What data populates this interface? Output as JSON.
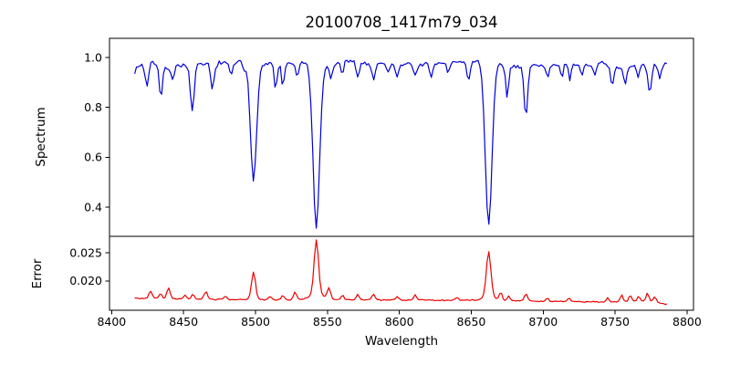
{
  "chart_data": {
    "type": "line",
    "title": "20100708_1417m79_034",
    "xlabel": "Wavelength",
    "xlim": [
      8398.5,
      8804.5
    ],
    "xticks": [
      8400,
      8450,
      8500,
      8550,
      8600,
      8650,
      8700,
      8750,
      8800
    ],
    "x_data_range": [
      8416,
      8786
    ],
    "sample_step": 1.25,
    "background_color": "#ffffff",
    "frame_color": "#000000",
    "panels": [
      {
        "name": "spectrum",
        "ylabel": "Spectrum",
        "color": "#0000dd",
        "ylim": [
          0.283,
          1.077
        ],
        "yticks": [
          0.4,
          0.6,
          0.8,
          1.0
        ],
        "ytick_labels": [
          "0.4",
          "0.6",
          "0.8",
          "1.0"
        ],
        "noise_seed": 7,
        "noise_amplitude": 0.011,
        "continuum": [
          [
            8416,
            0.945
          ],
          [
            8419,
            0.968
          ],
          [
            8423,
            0.975
          ],
          [
            8428,
            0.985
          ],
          [
            8432,
            0.975
          ],
          [
            8438,
            0.955
          ],
          [
            8444,
            0.965
          ],
          [
            8450,
            0.972
          ],
          [
            8455,
            0.965
          ],
          [
            8460,
            0.968
          ],
          [
            8466,
            0.975
          ],
          [
            8474,
            0.978
          ],
          [
            8481,
            0.975
          ],
          [
            8488,
            0.982
          ],
          [
            8495,
            0.978
          ],
          [
            8503,
            0.972
          ],
          [
            8509,
            0.975
          ],
          [
            8517,
            0.972
          ],
          [
            8524,
            0.975
          ],
          [
            8532,
            0.978
          ],
          [
            8538,
            0.982
          ],
          [
            8545,
            0.975
          ],
          [
            8551,
            0.962
          ],
          [
            8557,
            0.975
          ],
          [
            8563,
            0.985
          ],
          [
            8571,
            0.978
          ],
          [
            8579,
            0.975
          ],
          [
            8588,
            0.978
          ],
          [
            8597,
            0.972
          ],
          [
            8606,
            0.975
          ],
          [
            8615,
            0.972
          ],
          [
            8624,
            0.975
          ],
          [
            8633,
            0.978
          ],
          [
            8642,
            0.982
          ],
          [
            8651,
            0.988
          ],
          [
            8659,
            0.985
          ],
          [
            8666,
            0.972
          ],
          [
            8673,
            0.968
          ],
          [
            8681,
            0.965
          ],
          [
            8692,
            0.968
          ],
          [
            8701,
            0.972
          ],
          [
            8711,
            0.975
          ],
          [
            8721,
            0.968
          ],
          [
            8731,
            0.972
          ],
          [
            8741,
            0.975
          ],
          [
            8749,
            0.962
          ],
          [
            8755,
            0.955
          ],
          [
            8762,
            0.965
          ],
          [
            8769,
            0.972
          ],
          [
            8777,
            0.968
          ],
          [
            8786,
            0.972
          ]
        ],
        "absorption_lines": [
          {
            "center": 8424.5,
            "depth": 0.09,
            "sigma": 1.2
          },
          {
            "center": 8434.2,
            "depth": 0.13,
            "sigma": 1.1
          },
          {
            "center": 8442.5,
            "depth": 0.05,
            "sigma": 1.0
          },
          {
            "center": 8456.0,
            "depth": 0.185,
            "sigma": 1.3
          },
          {
            "center": 8470.0,
            "depth": 0.105,
            "sigma": 1.2
          },
          {
            "center": 8483.0,
            "depth": 0.05,
            "sigma": 1.0
          },
          {
            "center": 8492.0,
            "depth": 0.035,
            "sigma": 0.9
          },
          {
            "center": 8498.6,
            "depth": 0.465,
            "sigma": 2.1
          },
          {
            "center": 8514.0,
            "depth": 0.105,
            "sigma": 0.9
          },
          {
            "center": 8519.0,
            "depth": 0.095,
            "sigma": 0.9
          },
          {
            "center": 8529.0,
            "depth": 0.06,
            "sigma": 1.0
          },
          {
            "center": 8542.3,
            "depth": 0.66,
            "sigma": 2.3
          },
          {
            "center": 8552.5,
            "depth": 0.05,
            "sigma": 1.0
          },
          {
            "center": 8560.5,
            "depth": 0.045,
            "sigma": 0.9
          },
          {
            "center": 8571.0,
            "depth": 0.055,
            "sigma": 1.0
          },
          {
            "center": 8582.0,
            "depth": 0.065,
            "sigma": 1.1
          },
          {
            "center": 8592.0,
            "depth": 0.04,
            "sigma": 0.9
          },
          {
            "center": 8598.5,
            "depth": 0.05,
            "sigma": 1.0
          },
          {
            "center": 8611.0,
            "depth": 0.05,
            "sigma": 1.0
          },
          {
            "center": 8622.0,
            "depth": 0.06,
            "sigma": 1.0
          },
          {
            "center": 8634.0,
            "depth": 0.04,
            "sigma": 0.9
          },
          {
            "center": 8648.0,
            "depth": 0.075,
            "sigma": 1.2
          },
          {
            "center": 8662.1,
            "depth": 0.655,
            "sigma": 2.3
          },
          {
            "center": 8675.0,
            "depth": 0.13,
            "sigma": 1.0
          },
          {
            "center": 8688.0,
            "depth": 0.21,
            "sigma": 1.2
          },
          {
            "center": 8703.0,
            "depth": 0.06,
            "sigma": 1.0
          },
          {
            "center": 8713.0,
            "depth": 0.05,
            "sigma": 0.9
          },
          {
            "center": 8718.5,
            "depth": 0.065,
            "sigma": 0.9
          },
          {
            "center": 8727.0,
            "depth": 0.04,
            "sigma": 0.9
          },
          {
            "center": 8736.0,
            "depth": 0.05,
            "sigma": 1.0
          },
          {
            "center": 8748.0,
            "depth": 0.08,
            "sigma": 1.1
          },
          {
            "center": 8757.0,
            "depth": 0.07,
            "sigma": 1.0
          },
          {
            "center": 8766.0,
            "depth": 0.05,
            "sigma": 0.9
          },
          {
            "center": 8774.0,
            "depth": 0.11,
            "sigma": 1.2
          },
          {
            "center": 8781.0,
            "depth": 0.05,
            "sigma": 0.9
          }
        ]
      },
      {
        "name": "error",
        "ylabel": "Error",
        "color": "#ee0000",
        "ylim": [
          0.0148,
          0.0279
        ],
        "yticks": [
          0.02,
          0.025
        ],
        "ytick_labels": [
          "0.020",
          "0.025"
        ],
        "noise_seed": 99,
        "noise_amplitude": 0.00013,
        "baseline": [
          [
            8416,
            0.01695
          ],
          [
            8430,
            0.0169
          ],
          [
            8450,
            0.0168
          ],
          [
            8475,
            0.01672
          ],
          [
            8500,
            0.01668
          ],
          [
            8525,
            0.0167
          ],
          [
            8545,
            0.0168
          ],
          [
            8565,
            0.01668
          ],
          [
            8590,
            0.01662
          ],
          [
            8615,
            0.0166
          ],
          [
            8640,
            0.01655
          ],
          [
            8660,
            0.0166
          ],
          [
            8680,
            0.0165
          ],
          [
            8700,
            0.0164
          ],
          [
            8720,
            0.01632
          ],
          [
            8740,
            0.01628
          ],
          [
            8758,
            0.01635
          ],
          [
            8772,
            0.0164
          ],
          [
            8780,
            0.0162
          ],
          [
            8786,
            0.01585
          ]
        ],
        "emission_peaks": [
          {
            "center": 8427.0,
            "height": 0.0013,
            "sigma": 1.1
          },
          {
            "center": 8434.0,
            "height": 0.0009,
            "sigma": 1.0
          },
          {
            "center": 8439.5,
            "height": 0.0019,
            "sigma": 1.1
          },
          {
            "center": 8451.0,
            "height": 0.0007,
            "sigma": 0.9
          },
          {
            "center": 8456.5,
            "height": 0.0009,
            "sigma": 1.0
          },
          {
            "center": 8465.5,
            "height": 0.0013,
            "sigma": 1.2
          },
          {
            "center": 8479.0,
            "height": 0.0006,
            "sigma": 0.9
          },
          {
            "center": 8498.6,
            "height": 0.0048,
            "sigma": 1.4
          },
          {
            "center": 8510.0,
            "height": 0.0005,
            "sigma": 0.9
          },
          {
            "center": 8519.0,
            "height": 0.0008,
            "sigma": 0.9
          },
          {
            "center": 8527.5,
            "height": 0.0013,
            "sigma": 1.0
          },
          {
            "center": 8542.3,
            "height": 0.0095,
            "sigma": 1.5
          },
          {
            "center": 8542.3,
            "height": 0.001,
            "sigma": 4.0
          },
          {
            "center": 8551.0,
            "height": 0.002,
            "sigma": 1.1
          },
          {
            "center": 8560.5,
            "height": 0.0008,
            "sigma": 0.9
          },
          {
            "center": 8571.0,
            "height": 0.001,
            "sigma": 1.0
          },
          {
            "center": 8582.0,
            "height": 0.0011,
            "sigma": 1.0
          },
          {
            "center": 8598.5,
            "height": 0.0006,
            "sigma": 0.9
          },
          {
            "center": 8611.0,
            "height": 0.0009,
            "sigma": 1.0
          },
          {
            "center": 8640.0,
            "height": 0.0005,
            "sigma": 1.0
          },
          {
            "center": 8662.1,
            "height": 0.0077,
            "sigma": 1.5
          },
          {
            "center": 8662.1,
            "height": 0.0009,
            "sigma": 3.5
          },
          {
            "center": 8670.5,
            "height": 0.0015,
            "sigma": 1.0
          },
          {
            "center": 8676.0,
            "height": 0.0009,
            "sigma": 0.9
          },
          {
            "center": 8688.0,
            "height": 0.0013,
            "sigma": 1.1
          },
          {
            "center": 8703.0,
            "height": 0.0006,
            "sigma": 0.9
          },
          {
            "center": 8718.0,
            "height": 0.0006,
            "sigma": 0.9
          },
          {
            "center": 8745.0,
            "height": 0.0007,
            "sigma": 0.9
          },
          {
            "center": 8754.5,
            "height": 0.0013,
            "sigma": 0.9
          },
          {
            "center": 8760.5,
            "height": 0.0011,
            "sigma": 0.9
          },
          {
            "center": 8766.5,
            "height": 0.0009,
            "sigma": 0.9
          },
          {
            "center": 8772.5,
            "height": 0.0015,
            "sigma": 1.0
          },
          {
            "center": 8777.5,
            "height": 0.0009,
            "sigma": 0.9
          }
        ]
      }
    ]
  }
}
